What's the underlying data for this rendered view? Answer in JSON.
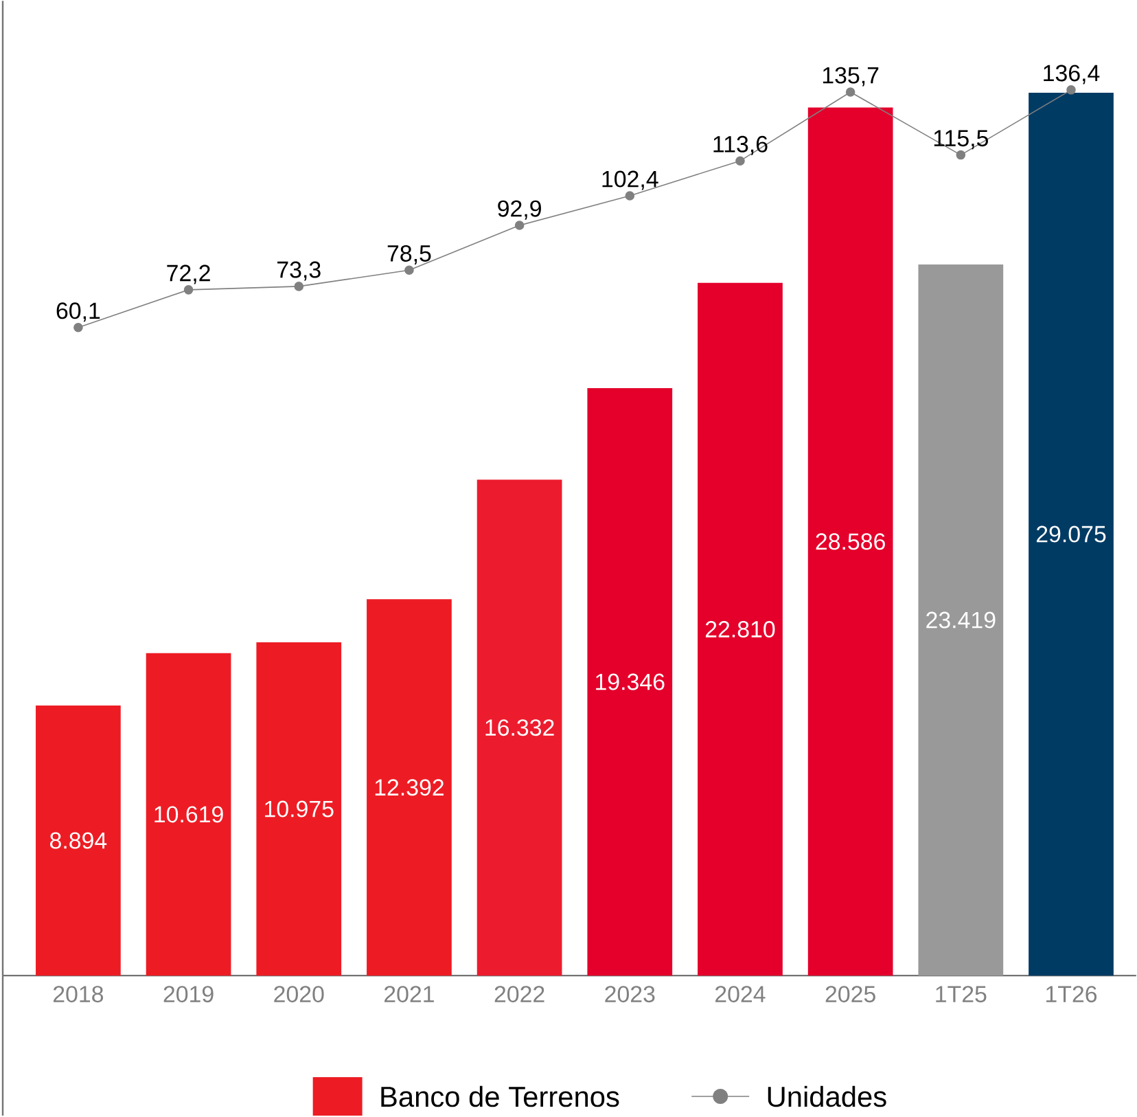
{
  "chart_data": {
    "type": "bar",
    "categories": [
      "2018",
      "2019",
      "2020",
      "2021",
      "2022",
      "2023",
      "2024",
      "2025",
      "1T25",
      "1T26"
    ],
    "series": [
      {
        "name": "Banco de Terrenos",
        "colors": [
          "#ed1c24",
          "#ed1c24",
          "#ed1c24",
          "#ed1c24",
          "#ec1c2e",
          "#e4002b",
          "#e4002b",
          "#e4002b",
          "#999999",
          "#003b64"
        ],
        "values": [
          8894,
          10619,
          10975,
          12392,
          16332,
          19346,
          22810,
          28586,
          23419,
          29075
        ],
        "value_labels": [
          "8.894",
          "10.619",
          "10.975",
          "12.392",
          "16.332",
          "19.346",
          "22.810",
          "28.586",
          "23.419",
          "29.075"
        ]
      },
      {
        "name": "Unidades",
        "type": "line",
        "axis": "y2",
        "color": "#808080",
        "values": [
          60.1,
          72.2,
          73.3,
          78.5,
          92.9,
          102.4,
          113.6,
          135.7,
          115.5,
          136.4
        ],
        "value_labels": [
          "60,1",
          "72,2",
          "73,3",
          "78,5",
          "92,9",
          "102,4",
          "113,6",
          "135,7",
          "115,5",
          "136,4"
        ]
      }
    ],
    "ylim": [
      0,
      32100
    ],
    "y2lim": [
      -148,
      165
    ],
    "legend": "bottom",
    "marker": "circle"
  }
}
